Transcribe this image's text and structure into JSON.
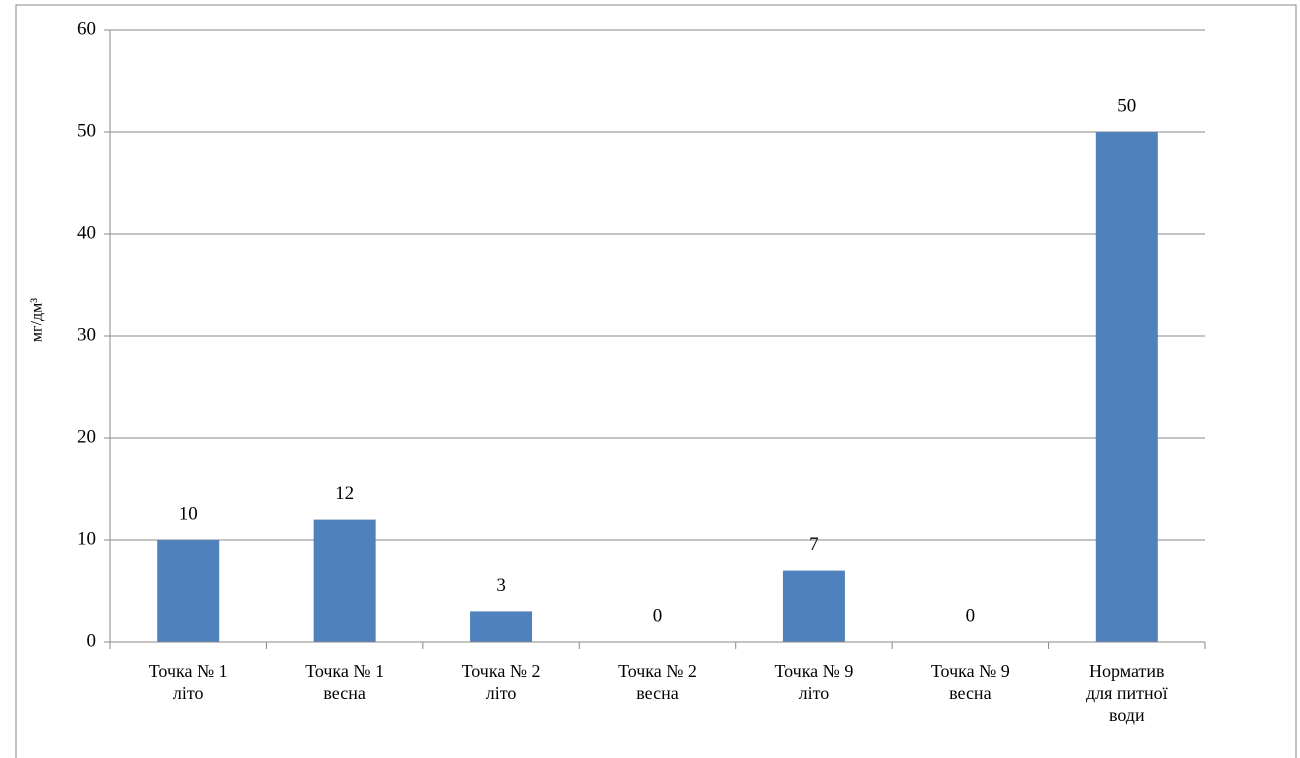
{
  "chart_data": {
    "type": "bar",
    "y_label": "мг/дм³",
    "categories": [
      "Точка № 1\nліто",
      "Точка № 1\nвесна",
      "Точка № 2\nліто",
      "Точка № 2\nвесна",
      "Точка № 9\nліто",
      "Точка № 9\nвесна",
      "Норматив\nдля питної\nводи"
    ],
    "values": [
      10,
      12,
      3,
      0,
      7,
      0,
      50
    ],
    "color": "#4f81bd",
    "ylim": [
      0,
      60
    ],
    "yticks": [
      0,
      10,
      20,
      30,
      40,
      50,
      60
    ],
    "grid": true
  }
}
